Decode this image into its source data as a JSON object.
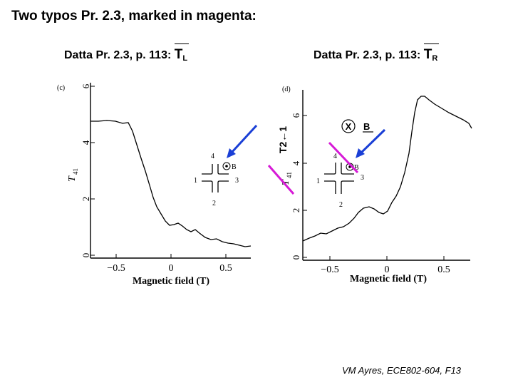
{
  "slide": {
    "title": "Two typos Pr. 2.3, marked in magenta:",
    "footer": "VM Ayres, ECE802-604, F13"
  },
  "left_panel": {
    "heading_prefix": "Datta Pr. 2.3, p. 113: ",
    "heading_symbol": "T",
    "heading_sub": "L",
    "figure_label": "(c)",
    "y_axis_label": "T",
    "y_axis_sub": "41",
    "y_ticks": [
      "0",
      "2",
      "4",
      "6"
    ],
    "x_ticks": [
      "−0.5",
      "0",
      "0.5"
    ],
    "x_axis_label": "Magnetic field (T)",
    "inset_terminals": [
      "1",
      "2",
      "3",
      "4"
    ],
    "inset_b_label": "B"
  },
  "right_panel": {
    "heading_prefix": "Datta Pr. 2.3, p. 113: ",
    "heading_symbol": "T",
    "heading_sub": "R",
    "figure_label": "(d)",
    "y_axis_label": "T",
    "y_axis_sub": "41",
    "y_ticks": [
      "0",
      "2",
      "4",
      "6"
    ],
    "x_ticks": [
      "−0.5",
      "0",
      "0.5"
    ],
    "x_axis_label": "Magnetic field (T)",
    "inset_terminals": [
      "1",
      "2",
      "3",
      "4"
    ],
    "inset_b_label": "B",
    "corrected_axis_label": "T2←1",
    "annotation_x": "X",
    "annotation_b": "B"
  },
  "colors": {
    "arrow": "#1a3fd6",
    "typo_mark": "#d61ad6"
  }
}
